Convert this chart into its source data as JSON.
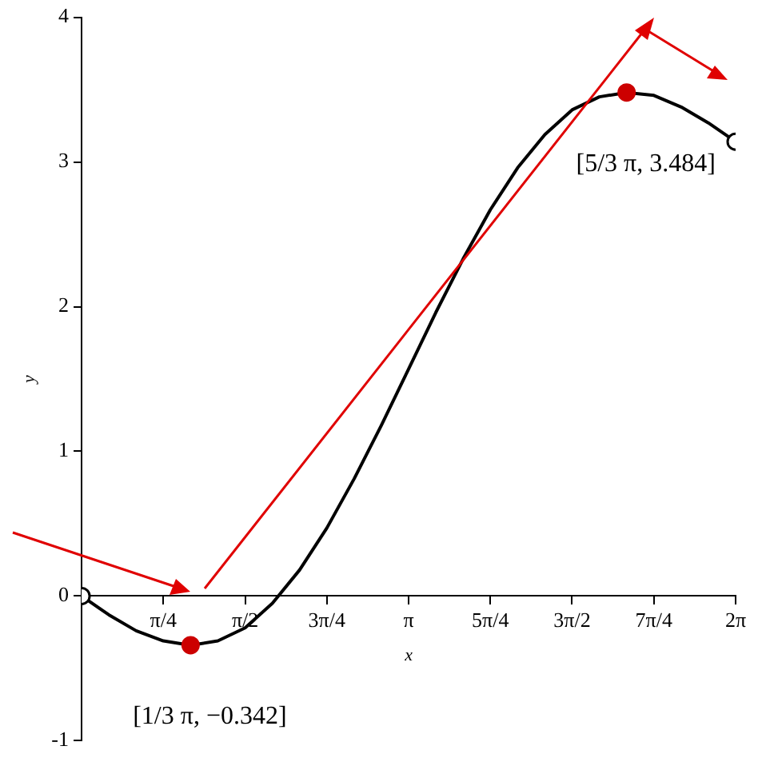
{
  "chart_data": {
    "type": "line",
    "xlabel": "x",
    "ylabel": "y",
    "xlim": [
      0,
      6.283
    ],
    "ylim": [
      -1,
      4
    ],
    "xticks": [
      {
        "value": 0.785,
        "label": "π/4"
      },
      {
        "value": 1.571,
        "label": "π/2"
      },
      {
        "value": 2.356,
        "label": "3π/4"
      },
      {
        "value": 3.142,
        "label": "π"
      },
      {
        "value": 3.927,
        "label": "5π/4"
      },
      {
        "value": 4.712,
        "label": "3π/2"
      },
      {
        "value": 5.498,
        "label": "7π/4"
      },
      {
        "value": 6.283,
        "label": "2π"
      }
    ],
    "yticks": [
      -1,
      0,
      1,
      2,
      3,
      4
    ],
    "grid": false,
    "legend": false,
    "series": [
      {
        "color": "#000000",
        "marker": "none",
        "x": [
          0,
          0.262,
          0.524,
          0.785,
          1.047,
          1.309,
          1.571,
          1.833,
          2.094,
          2.356,
          2.618,
          2.88,
          3.142,
          3.403,
          3.665,
          3.927,
          4.189,
          4.451,
          4.712,
          4.974,
          5.236,
          5.498,
          5.76,
          6.021,
          6.283
        ],
        "values": [
          0,
          -0.13,
          -0.24,
          -0.31,
          -0.34,
          -0.31,
          -0.22,
          -0.05,
          0.18,
          0.47,
          0.81,
          1.18,
          1.57,
          1.96,
          2.33,
          2.67,
          2.96,
          3.19,
          3.36,
          3.45,
          3.48,
          3.46,
          3.38,
          3.27,
          3.14
        ]
      },
      {
        "type": "scatter",
        "color": "#cc0000",
        "marker": "circle",
        "x": [
          1.047,
          5.236
        ],
        "values": [
          -0.34,
          3.48
        ]
      },
      {
        "type": "scatter",
        "color": "#000000",
        "marker": "circle",
        "x": [
          0,
          6.283
        ],
        "values": [
          0,
          3.14
        ]
      }
    ],
    "annotations": [
      {
        "text": "[1/3 π, −0.342]",
        "x": 1.047,
        "y": -0.34
      },
      {
        "text": "[5/3 π, 3.484]",
        "x": 5.236,
        "y": 3.48
      }
    ]
  }
}
